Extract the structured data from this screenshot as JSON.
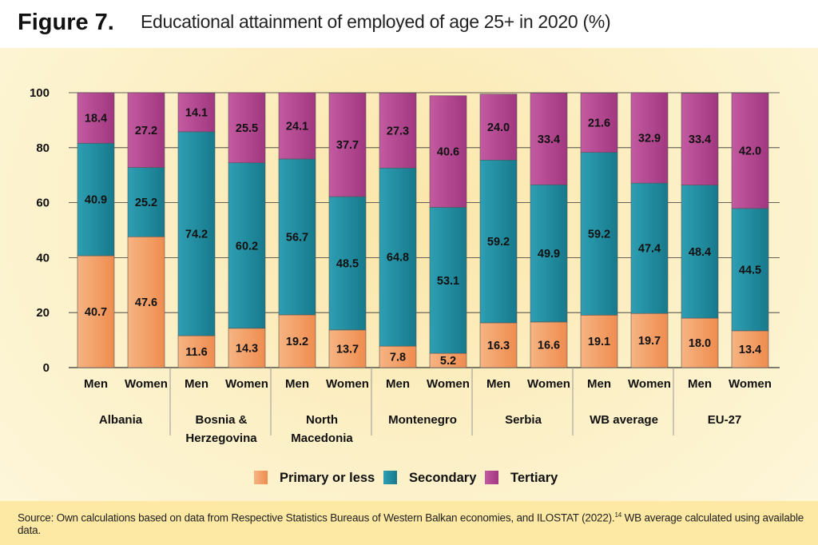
{
  "figure": {
    "label": "Figure 7.",
    "title": "Educational attainment of employed of age 25+ in 2020 (%)"
  },
  "source": {
    "text": "Source: Own calculations based on data from Respective Statistics Bureaus of Western Balkan economies, and ILOSTAT (2022).",
    "footnote": "14",
    "text2": "WB average calculated using available data."
  },
  "colors": {
    "primary": "#f0955a",
    "secondary": "#1e8a9e",
    "tertiary": "#b2448f"
  },
  "chart_data": {
    "type": "bar",
    "stacked": true,
    "ylim": [
      0,
      100
    ],
    "yticks": [
      0,
      20,
      40,
      60,
      80,
      100
    ],
    "grid": true,
    "legend_position": "bottom",
    "groups": [
      {
        "name": "Albania",
        "name_lines": [
          "Albania"
        ],
        "bars": [
          {
            "label": "Men",
            "primary": 40.7,
            "secondary": 40.9,
            "tertiary": 18.4
          },
          {
            "label": "Women",
            "primary": 47.6,
            "secondary": 25.2,
            "tertiary": 27.2
          }
        ]
      },
      {
        "name": "Bosnia & Herzegovina",
        "name_lines": [
          "Bosnia &",
          "Herzegovina"
        ],
        "bars": [
          {
            "label": "Men",
            "primary": 11.6,
            "secondary": 74.2,
            "tertiary": 14.1
          },
          {
            "label": "Women",
            "primary": 14.3,
            "secondary": 60.2,
            "tertiary": 25.5
          }
        ]
      },
      {
        "name": "North Macedonia",
        "name_lines": [
          "North",
          "Macedonia"
        ],
        "bars": [
          {
            "label": "Men",
            "primary": 19.2,
            "secondary": 56.7,
            "tertiary": 24.1
          },
          {
            "label": "Women",
            "primary": 13.7,
            "secondary": 48.5,
            "tertiary": 37.7
          }
        ]
      },
      {
        "name": "Montenegro",
        "name_lines": [
          "Montenegro"
        ],
        "bars": [
          {
            "label": "Men",
            "primary": 7.8,
            "secondary": 64.8,
            "tertiary": 27.3
          },
          {
            "label": "Women",
            "primary": 5.2,
            "secondary": 53.1,
            "tertiary": 40.6
          }
        ]
      },
      {
        "name": "Serbia",
        "name_lines": [
          "Serbia"
        ],
        "bars": [
          {
            "label": "Men",
            "primary": 16.3,
            "secondary": 59.2,
            "tertiary": 24.0
          },
          {
            "label": "Women",
            "primary": 16.6,
            "secondary": 49.9,
            "tertiary": 33.4
          }
        ]
      },
      {
        "name": "WB average",
        "name_lines": [
          "WB average"
        ],
        "bars": [
          {
            "label": "Men",
            "primary": 19.1,
            "secondary": 59.2,
            "tertiary": 21.6
          },
          {
            "label": "Women",
            "primary": 19.7,
            "secondary": 47.4,
            "tertiary": 32.9
          }
        ]
      },
      {
        "name": "EU-27",
        "name_lines": [
          "EU-27"
        ],
        "bars": [
          {
            "label": "Men",
            "primary": 18.0,
            "secondary": 48.4,
            "tertiary": 33.4
          },
          {
            "label": "Women",
            "primary": 13.4,
            "secondary": 44.5,
            "tertiary": 42.0
          }
        ]
      }
    ],
    "series": [
      {
        "key": "primary",
        "name": "Primary or less"
      },
      {
        "key": "secondary",
        "name": "Secondary"
      },
      {
        "key": "tertiary",
        "name": "Tertiary"
      }
    ]
  }
}
